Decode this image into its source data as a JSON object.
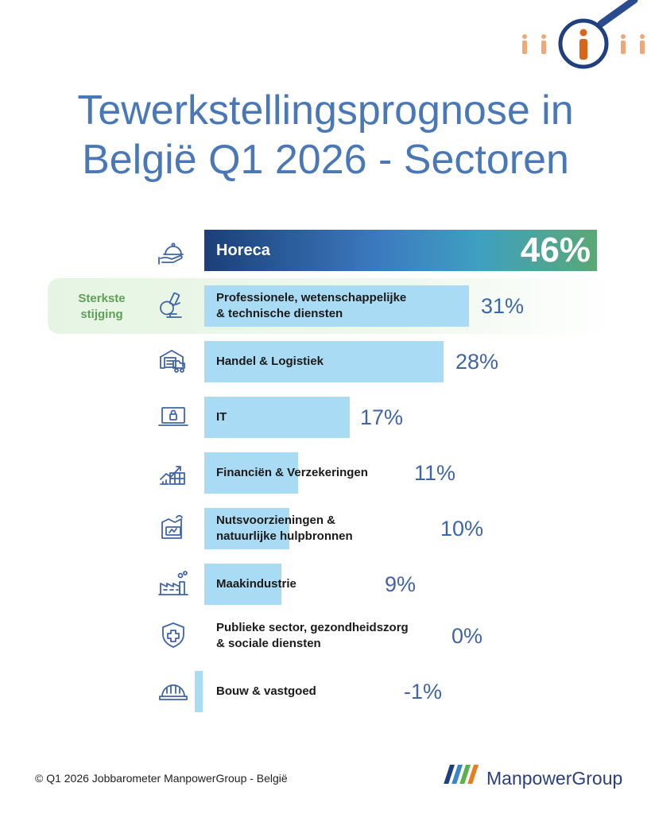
{
  "header": {
    "title_line1": "Tewerkstellingsprognose in",
    "title_line2": "België Q1 2026 - Sectoren"
  },
  "highlight": {
    "label_line1": "Sterkste",
    "label_line2": "stijging"
  },
  "chart_data": {
    "type": "bar",
    "orientation": "horizontal",
    "value_max": 46,
    "categories": [
      {
        "label": "Horeca",
        "value": 46,
        "display": "46%",
        "icon": "cloche-serving-icon"
      },
      {
        "label": "Professionele, wetenschappelijke\n& technische diensten",
        "value": 31,
        "display": "31%",
        "icon": "microscope-icon",
        "highlight": true
      },
      {
        "label": "Handel & Logistiek",
        "value": 28,
        "display": "28%",
        "icon": "warehouse-truck-icon"
      },
      {
        "label": "IT",
        "value": 17,
        "display": "17%",
        "icon": "laptop-lock-icon"
      },
      {
        "label": "Financiën & Verzekeringen",
        "value": 11,
        "display": "11%",
        "icon": "finance-chart-icon"
      },
      {
        "label": "Nutsvoorzieningen &\nnatuurlijke hulpbronnen",
        "value": 10,
        "display": "10%",
        "icon": "utility-plant-icon"
      },
      {
        "label": "Maakindustrie",
        "value": 9,
        "display": "9%",
        "icon": "factory-icon"
      },
      {
        "label": "Publieke sector, gezondheidszorg\n& sociale diensten",
        "value": 0,
        "display": "0%",
        "icon": "shield-cross-icon"
      },
      {
        "label": "Bouw & vastgoed",
        "value": -1,
        "display": "-1%",
        "icon": "hard-hat-icon"
      }
    ],
    "colors": {
      "bar": "#a9dcf4",
      "value_text": "#3f64a8"
    }
  },
  "footer": {
    "copyright": "© Q1 2026 Jobbarometer ManpowerGroup - België",
    "brand": "ManpowerGroup"
  }
}
